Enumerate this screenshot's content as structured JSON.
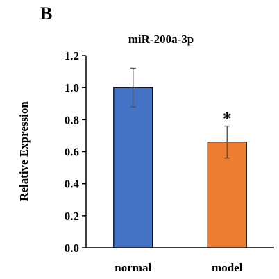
{
  "panel_label": "B",
  "chart_data": {
    "type": "bar",
    "title": "miR-200a-3p",
    "xlabel": "",
    "ylabel": "Relative Expression",
    "categories": [
      "normal",
      "model"
    ],
    "values": [
      1.0,
      0.66
    ],
    "errors": [
      0.12,
      0.1
    ],
    "significance": [
      "",
      "*"
    ],
    "colors": [
      "#4472c4",
      "#ed7d31"
    ],
    "ylim": [
      0,
      1.2
    ],
    "yticks": [
      0.0,
      0.2,
      0.4,
      0.6,
      0.8,
      1.0,
      1.2
    ],
    "ytick_labels": [
      "0.0",
      "0.2",
      "0.4",
      "0.6",
      "0.8",
      "1.0",
      "1.2"
    ],
    "grid": false,
    "legend": "none"
  }
}
